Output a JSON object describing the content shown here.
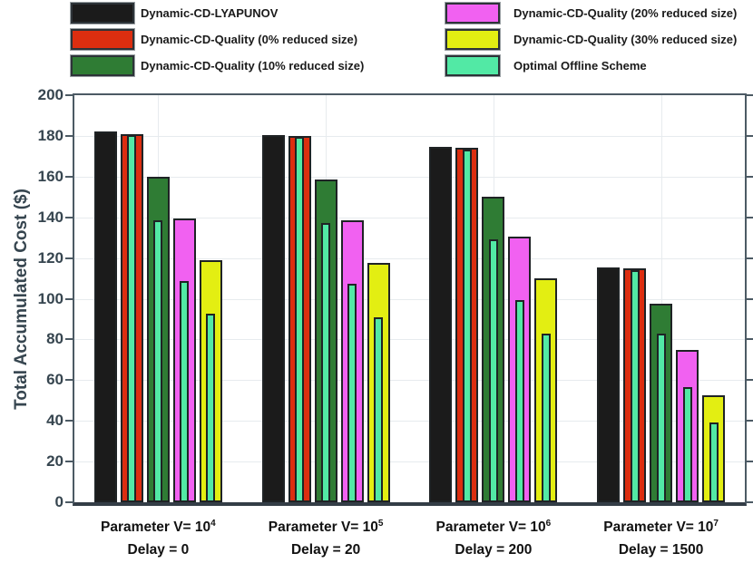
{
  "figure": {
    "background": "#ffffff",
    "grid_color": "#e7ebee",
    "axis_color": "#4c5a64",
    "axis_bottom_color": "#333d46",
    "tick_text_color": "#36454f",
    "bar_outline_color": "#1f2325"
  },
  "chart_data": {
    "type": "bar",
    "title": "",
    "xlabel": "",
    "ylabel": "Total Accumulated Cost ($)",
    "ylim": [
      0,
      200
    ],
    "yticks": [
      0,
      20,
      40,
      60,
      80,
      100,
      120,
      140,
      160,
      180,
      200
    ],
    "grid": "on",
    "legend_position": "top outside, two columns",
    "groups": [
      {
        "line1": "Parameter V= 10",
        "exp": "4",
        "line2": "Delay = 0"
      },
      {
        "line1": "Parameter V= 10",
        "exp": "5",
        "line2": "Delay = 20"
      },
      {
        "line1": "Parameter V= 10",
        "exp": "6",
        "line2": "Delay = 200"
      },
      {
        "line1": "Parameter V= 10",
        "exp": "7",
        "line2": "Delay = 1500"
      }
    ],
    "series": [
      {
        "key": "lyapunov",
        "name": "Dynamic-CD-LYAPUNOV",
        "color": "#1b1b1b",
        "values": [
          182,
          180.5,
          174.5,
          115.5
        ]
      },
      {
        "key": "quality-0",
        "name": "Dynamic-CD-Quality (0% reduced size)",
        "color": "#dc2e10",
        "values": [
          181,
          180,
          174,
          115
        ]
      },
      {
        "key": "quality-10",
        "name": "Dynamic-CD-Quality (10% reduced size)",
        "color": "#2f7c34",
        "values": [
          160,
          158.5,
          150,
          97.5
        ]
      },
      {
        "key": "quality-20",
        "name": "Dynamic-CD-Quality (20% reduced size)",
        "color": "#f161f1",
        "values": [
          139.5,
          138.5,
          130.5,
          75
        ]
      },
      {
        "key": "quality-30",
        "name": "Dynamic-CD-Quality (30% reduced size)",
        "color": "#e3ee12",
        "values": [
          119,
          117.5,
          110,
          52.5
        ]
      }
    ],
    "overlay_series": {
      "key": "optimal-offline",
      "name": "Optimal Offline Scheme",
      "color": "#52e9a5",
      "per_host": [
        {
          "host_key": "quality-0",
          "values": [
            180.5,
            179.5,
            173.5,
            114
          ]
        },
        {
          "host_key": "quality-10",
          "values": [
            138.5,
            137,
            129,
            83
          ]
        },
        {
          "host_key": "quality-20",
          "values": [
            108.5,
            107.5,
            99.5,
            56.5
          ]
        },
        {
          "host_key": "quality-30",
          "values": [
            92.5,
            91,
            83,
            39
          ]
        }
      ]
    }
  }
}
